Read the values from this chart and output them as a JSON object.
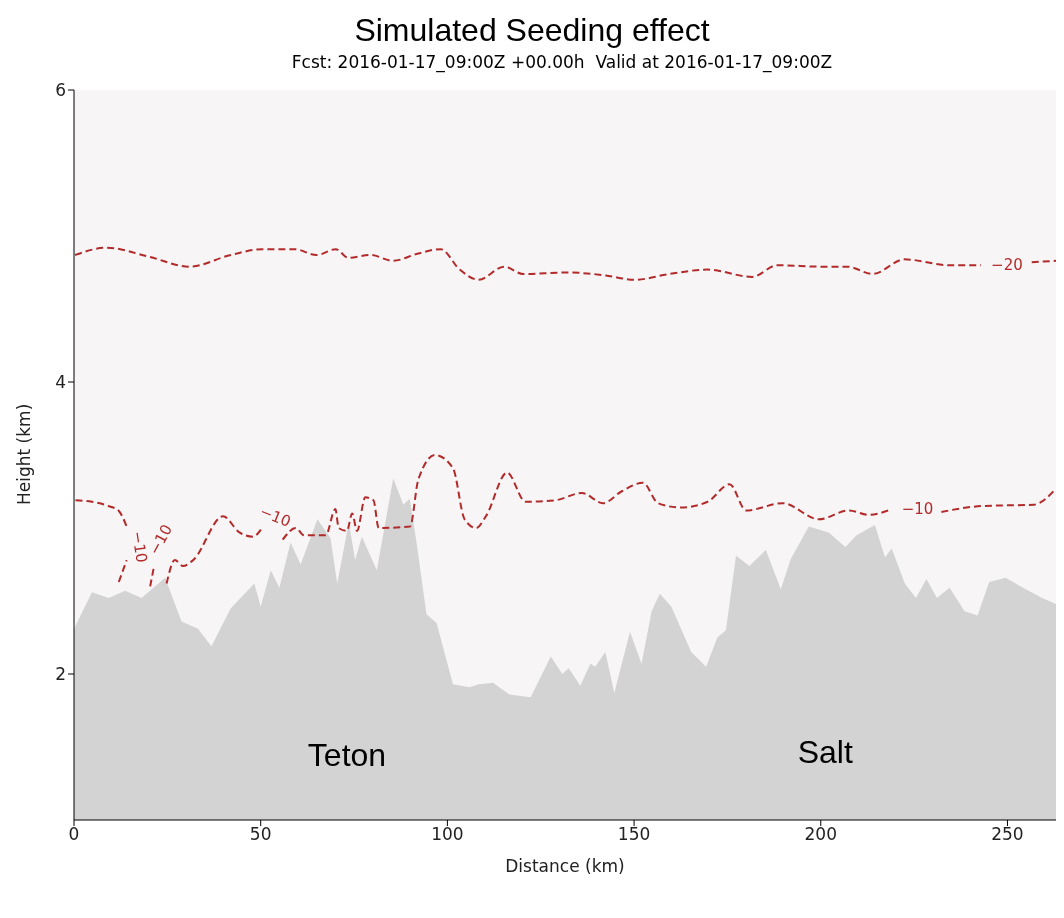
{
  "chart_data": {
    "type": "area",
    "title": "Simulated Seeding effect",
    "subtitle": "Fcst: 2016-01-17_09:00Z +00.00h  Valid at 2016-01-17_09:00Z",
    "xlabel": "Distance (km)",
    "ylabel": "Height (km)",
    "xlim": [
      0,
      263
    ],
    "ylim": [
      1,
      6
    ],
    "xticks": [
      0,
      50,
      100,
      150,
      200,
      250
    ],
    "yticks": [
      2,
      4,
      6
    ],
    "grid": false,
    "legend": false,
    "series": [
      {
        "color": "#d3d3d3",
        "x": [
          0,
          0.4,
          4.8,
          9.3,
          13.7,
          18.1,
          24.4,
          28.8,
          33.2,
          36.8,
          42,
          48.3,
          50,
          52.7,
          55,
          58,
          60.7,
          65.2,
          68.7,
          70.5,
          73.6,
          75.3,
          77.1,
          81.1,
          85.5,
          88.2,
          89.9,
          91.8,
          94.4,
          97.1,
          101.5,
          105.9,
          108.5,
          112.2,
          116.6,
          122.3,
          127.7,
          130.8,
          132.5,
          135.6,
          138.3,
          139.6,
          142.3,
          144.7,
          148.9,
          152,
          154.7,
          156.9,
          160,
          165.3,
          169.3,
          172.3,
          174.6,
          177.3,
          180.9,
          185.3,
          189.3,
          192,
          196.8,
          202.1,
          206.6,
          209.6,
          214.5,
          217.2,
          219,
          222.5,
          225.5,
          228.3,
          231.1,
          234.5,
          238.5,
          242,
          245.1,
          249.5,
          254.9,
          259.3,
          263
        ],
        "values": [
          2.3,
          2.33,
          2.56,
          2.52,
          2.57,
          2.52,
          2.66,
          2.36,
          2.31,
          2.19,
          2.45,
          2.62,
          2.46,
          2.71,
          2.59,
          2.9,
          2.75,
          3.06,
          2.93,
          2.62,
          3.04,
          2.78,
          2.94,
          2.71,
          3.34,
          3.16,
          3.2,
          2.89,
          2.41,
          2.35,
          1.93,
          1.91,
          1.93,
          1.94,
          1.86,
          1.84,
          2.12,
          2.0,
          2.04,
          1.92,
          2.07,
          2.05,
          2.15,
          1.87,
          2.29,
          2.07,
          2.43,
          2.55,
          2.46,
          2.15,
          2.05,
          2.25,
          2.3,
          2.81,
          2.74,
          2.85,
          2.58,
          2.79,
          3.01,
          2.97,
          2.87,
          2.95,
          3.02,
          2.8,
          2.86,
          2.62,
          2.52,
          2.65,
          2.52,
          2.59,
          2.43,
          2.4,
          2.63,
          2.66,
          2.58,
          2.52,
          2.48
        ]
      },
      {
        "type": "line",
        "color": "#b22a2a",
        "line_style": "dashed",
        "x": [
          0.3,
          8.8,
          19.8,
          30.9,
          42,
          50.5,
          59,
          65,
          70.1,
          73.5,
          79.4,
          85.4,
          92.2,
          98.2,
          103.3,
          108.4,
          115.2,
          120.3,
          132.2,
          142.4,
          150.1,
          159.5,
          169.7,
          181.6,
          188.4,
          200.3,
          207.1,
          213.9,
          222.4,
          234.4,
          242.9,
          250,
          256.5,
          263
        ],
        "values": [
          4.87,
          4.92,
          4.86,
          4.79,
          4.87,
          4.91,
          4.91,
          4.87,
          4.91,
          4.85,
          4.87,
          4.83,
          4.88,
          4.91,
          4.77,
          4.7,
          4.79,
          4.74,
          4.75,
          4.73,
          4.7,
          4.74,
          4.77,
          4.72,
          4.8,
          4.79,
          4.79,
          4.74,
          4.84,
          4.8,
          4.8,
          null,
          4.82,
          4.83
        ]
      },
      {
        "type": "line",
        "color": "#b22a2a",
        "line_style": "dashed",
        "x": [
          0.4,
          4.8,
          9.3,
          11.9,
          14.1,
          15,
          20.4,
          21.3,
          23,
          24,
          24.8,
          27,
          29.2,
          31.9,
          39.9,
          44.3,
          47.9,
          50.1,
          53,
          55.9,
          59.4,
          61.6,
          67.4,
          70,
          70.9,
          73.1,
          74.5,
          75.8,
          78,
          80.2,
          81.6,
          90,
          92.2,
          96.7,
          101.5,
          104.6,
          107.7,
          110.3,
          116,
          120.9,
          128.9,
          136,
          141.7,
          146.6,
          152.4,
          156.4,
          162.6,
          169.7,
          175.6,
          180,
          189.8,
          199.5,
          207.5,
          212.8,
          218.1,
          225,
          232.3,
          242.9,
          257.1,
          263
        ],
        "values": [
          3.19,
          3.18,
          3.15,
          3.12,
          3.01,
          null,
          2.6,
          2.72,
          null,
          null,
          2.62,
          2.78,
          2.74,
          2.78,
          3.08,
          2.97,
          2.94,
          2.99,
          null,
          2.92,
          3.0,
          2.95,
          2.95,
          3.13,
          3.0,
          2.98,
          3.1,
          2.98,
          3.21,
          3.19,
          3.0,
          3.01,
          3.33,
          3.5,
          3.41,
          3.06,
          3.0,
          3.08,
          3.38,
          3.18,
          3.19,
          3.24,
          3.17,
          3.25,
          3.31,
          3.17,
          3.14,
          3.18,
          3.3,
          3.12,
          3.17,
          3.06,
          3.12,
          3.09,
          3.12,
          null,
          3.11,
          3.15,
          3.16,
          3.27
        ]
      },
      {
        "type": "line",
        "color": "#b22a2a",
        "line_style": "dashed",
        "x": [
          12,
          14.1
        ],
        "values": [
          2.63,
          2.78
        ]
      }
    ],
    "annotations": [
      "Teton",
      "Salt",
      "−20",
      "−10",
      "−10",
      "−10",
      "−10"
    ]
  }
}
